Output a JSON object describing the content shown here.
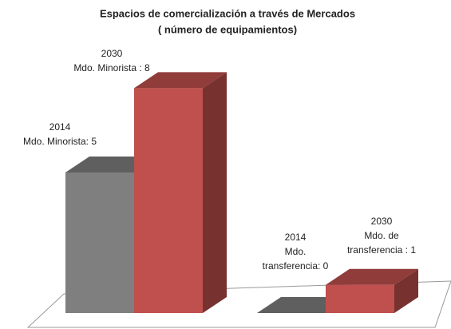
{
  "chart_data": {
    "type": "bar3d",
    "title": [
      "Espacios de comercialización  a través de Mercados",
      "( número de equipamientos)"
    ],
    "series": [
      {
        "color": "#7f7f7f",
        "values": [
          5,
          0
        ],
        "value_labels": [
          [
            "2014",
            "Mdo. Minorista:  5"
          ],
          [
            "2014",
            "Mdo.",
            "transferencia: 0"
          ]
        ]
      },
      {
        "color": "#c0504d",
        "values": [
          8,
          1
        ],
        "value_labels": [
          [
            "2030",
            "Mdo. Minorista :  8"
          ],
          [
            "2030",
            "Mdo. de",
            "transferencia : 1"
          ]
        ]
      }
    ]
  }
}
